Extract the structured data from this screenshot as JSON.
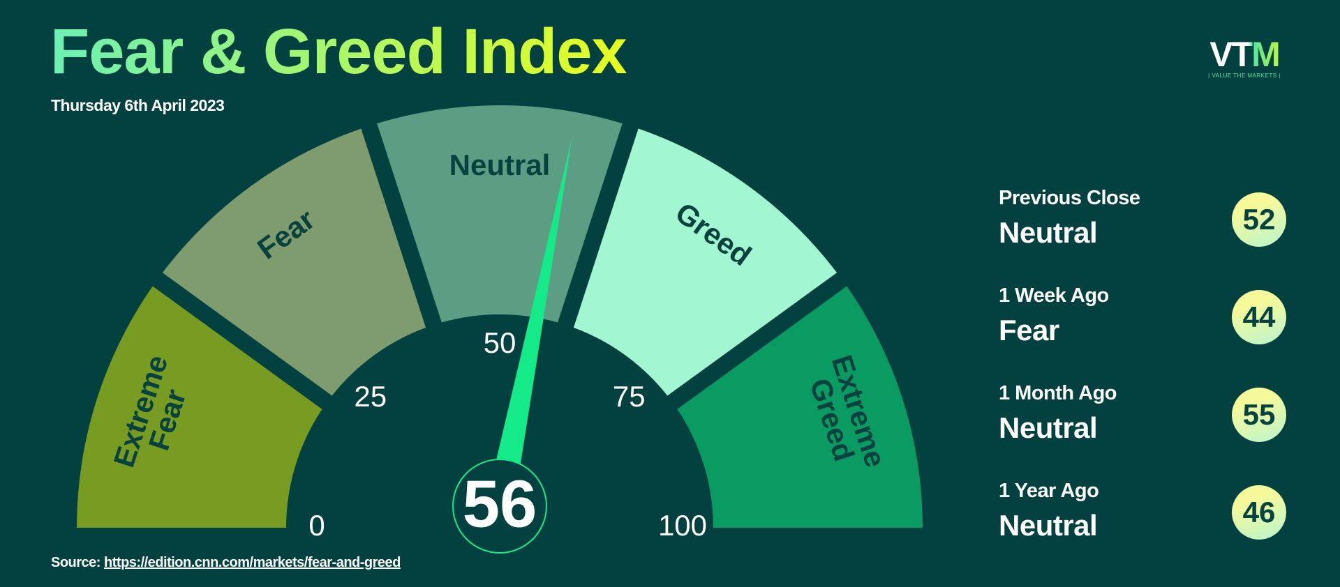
{
  "chart_data": {
    "type": "gauge",
    "title": "Fear & Greed Index",
    "subtitle": "Thursday 6th April 2023",
    "value": 56,
    "ylim": [
      0,
      100
    ],
    "yticks": [
      0,
      25,
      50,
      75,
      100
    ],
    "segments": [
      "Extreme Fear",
      "Fear",
      "Neutral",
      "Greed",
      "Extreme Greed"
    ],
    "colors": [
      "#789c22",
      "#7f9c6e",
      "#5c9d83",
      "#a2f6d1",
      "#099b62"
    ],
    "needle_color": "#14ea88"
  },
  "history": [
    {
      "label": "Previous Close",
      "rating": "Neutral",
      "value": 52
    },
    {
      "label": "1 Week Ago",
      "rating": "Fear",
      "value": 44
    },
    {
      "label": "1 Month Ago",
      "rating": "Neutral",
      "value": 55
    },
    {
      "label": "1 Year Ago",
      "rating": "Neutral",
      "value": 46
    }
  ],
  "source": {
    "label": "Source:",
    "url": "https://edition.cnn.com/markets/fear-and-greed"
  },
  "logo": {
    "mark": "VTM",
    "tagline": "| VALUE THE MARKETS |"
  }
}
